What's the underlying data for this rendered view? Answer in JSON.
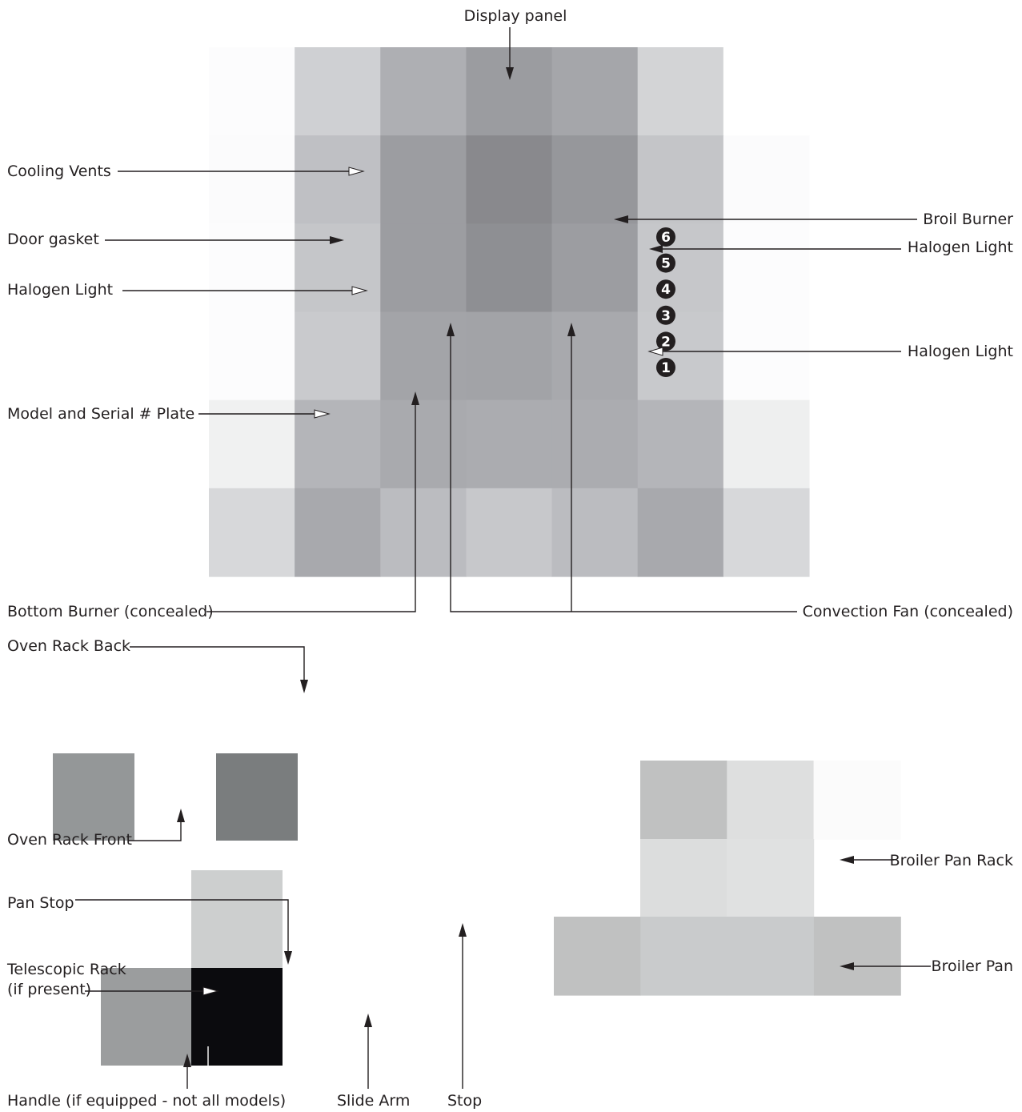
{
  "labels": {
    "display_panel": "Display panel",
    "cooling_vents": "Cooling Vents",
    "door_gasket": "Door gasket",
    "halogen_light_left": "Halogen Light",
    "model_serial_plate": "Model and Serial # Plate",
    "broil_burner": "Broil Burner",
    "halogen_light_right_top": "Halogen Light",
    "halogen_light_right_bottom": "Halogen Light",
    "bottom_burner": "Bottom Burner (concealed)",
    "convection_fan": "Convection Fan (concealed)",
    "oven_rack_back": "Oven Rack Back",
    "oven_rack_front": "Oven Rack Front",
    "pan_stop": "Pan Stop",
    "telescopic_rack_line1": "Telescopic Rack",
    "telescopic_rack_line2": "(if present)",
    "handle": "Handle (if equipped - not all models)",
    "slide_arm": "Slide Arm",
    "stop": "Stop",
    "broiler_pan_rack": "Broiler Pan Rack",
    "broiler_pan": "Broiler Pan"
  },
  "rack_positions": [
    "6",
    "5",
    "4",
    "3",
    "2",
    "1"
  ],
  "oven_tile_colors": [
    [
      "#fcfcfd",
      "#cfd0d3",
      "#aeafb3",
      "#9b9ca0",
      "#a5a6aa",
      "#d3d4d6",
      "#ffffff"
    ],
    [
      "#fbfbfc",
      "#bfc0c4",
      "#9c9da1",
      "#89898d",
      "#96979b",
      "#c4c5c8",
      "#fbfbfc"
    ],
    [
      "#fcfcfd",
      "#c5c6c9",
      "#9c9da1",
      "#8e8f93",
      "#9c9da1",
      "#c6c7ca",
      "#fcfcfd"
    ],
    [
      "#fcfcfd",
      "#c9cacd",
      "#a3a4a8",
      "#a2a3a7",
      "#a8a9ad",
      "#c8c9cc",
      "#fcfcfd"
    ],
    [
      "#f0f1f1",
      "#b4b5b9",
      "#a9aaae",
      "#abacb0",
      "#abacb0",
      "#b4b5b9",
      "#eeefef"
    ],
    [
      "#d7d8da",
      "#a8a9ad",
      "#bbbcc0",
      "#c7c8cb",
      "#bbbcc0",
      "#a8a9ad",
      "#d7d8da"
    ]
  ],
  "rack_colors": {
    "left": "#949798",
    "right": "#7a7d7e"
  },
  "telescopic_colors": {
    "top": "#cdcfcf",
    "bottom_left": "#9b9d9e",
    "bottom_right": "#0b0b0e"
  },
  "broiler_tile_colors": [
    [
      "#c0c1c1",
      "#dedfdf",
      "#fbfbfb"
    ],
    [
      "#dcdddd",
      "#e0e1e1"
    ],
    [
      "#c0c1c1",
      "#c9cbcc",
      "#c9cbcc",
      "#c0c1c1"
    ]
  ]
}
